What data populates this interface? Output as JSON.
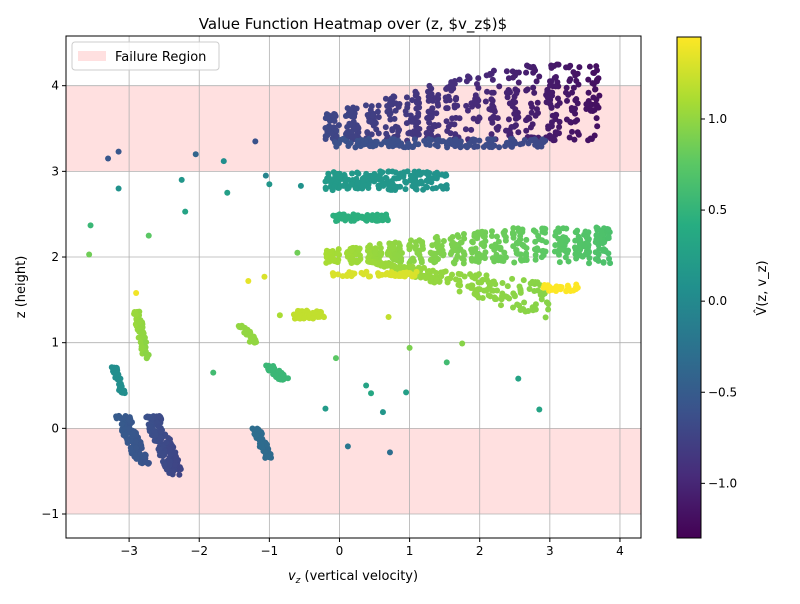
{
  "chart_data": {
    "type": "scatter",
    "title": "Value Function Heatmap over (z, $v_z$)$",
    "xlabel_main": "v",
    "xlabel_sub": "z",
    "xlabel_rest": " (vertical velocity)",
    "ylabel": "z (height)",
    "colorbar_label": "V̂(z, v_z)",
    "xlim": [
      -3.9,
      4.3
    ],
    "ylim": [
      -1.28,
      4.58
    ],
    "x_ticks": [
      -3,
      -2,
      -1,
      0,
      1,
      2,
      3,
      4
    ],
    "y_ticks": [
      -1,
      0,
      1,
      2,
      3,
      4
    ],
    "grid": true,
    "legend": {
      "placement": "top-left",
      "label": "Failure Region",
      "color": "#ffe0e0"
    },
    "failure_regions": [
      {
        "y0": 3.0,
        "y1": 4.0
      },
      {
        "y0": -1.0,
        "y1": 0.0
      }
    ],
    "colormap": "viridis",
    "colorbar": {
      "min": -1.3,
      "max": 1.45,
      "ticks": [
        -1.0,
        -0.5,
        0.0,
        0.5,
        1.0
      ]
    },
    "clusters": [
      {
        "x0": -0.2,
        "x1": 3.8,
        "y0": 3.2,
        "y1": 4.25,
        "v0": -0.7,
        "v1": -1.2,
        "n": 520,
        "kind": "streaks"
      },
      {
        "x0": -0.1,
        "x1": 3.0,
        "y0": 3.28,
        "y1": 3.38,
        "v0": -0.6,
        "v1": -0.7,
        "n": 140,
        "kind": "band"
      },
      {
        "x0": -0.2,
        "x1": 1.55,
        "y0": 2.78,
        "y1": 3.0,
        "v0": 0.2,
        "v1": 0.1,
        "n": 180,
        "kind": "band"
      },
      {
        "x0": -0.1,
        "x1": 0.7,
        "y0": 2.42,
        "y1": 2.5,
        "v0": 0.45,
        "v1": 0.45,
        "n": 60,
        "kind": "band"
      },
      {
        "x0": -0.2,
        "x1": 3.95,
        "y0": 1.85,
        "y1": 2.35,
        "v0": 1.1,
        "v1": 0.65,
        "n": 460,
        "kind": "streaks"
      },
      {
        "x0": 0.4,
        "x1": 3.0,
        "y0": 1.25,
        "y1": 1.95,
        "v0": 1.05,
        "v1": 0.95,
        "n": 220,
        "kind": "fan"
      },
      {
        "x0": -0.1,
        "x1": 1.1,
        "y0": 1.77,
        "y1": 1.83,
        "v0": 1.3,
        "v1": 1.3,
        "n": 50,
        "kind": "band"
      },
      {
        "x0": 2.9,
        "x1": 3.4,
        "y0": 1.6,
        "y1": 1.68,
        "v0": 1.45,
        "v1": 1.45,
        "n": 30,
        "kind": "band"
      },
      {
        "x0": -0.65,
        "x1": -0.2,
        "y0": 1.28,
        "y1": 1.38,
        "v0": 1.2,
        "v1": 1.2,
        "n": 40,
        "kind": "band"
      },
      {
        "x0": -2.95,
        "x1": -2.7,
        "y0": 0.8,
        "y1": 1.38,
        "v0": 1.05,
        "v1": 0.95,
        "n": 60,
        "kind": "diag"
      },
      {
        "x0": -1.45,
        "x1": -1.15,
        "y0": 1.0,
        "y1": 1.2,
        "v0": 1.0,
        "v1": 1.0,
        "n": 30,
        "kind": "diag"
      },
      {
        "x0": -1.1,
        "x1": -0.7,
        "y0": 0.56,
        "y1": 0.74,
        "v0": 0.55,
        "v1": 0.55,
        "n": 40,
        "kind": "diag"
      },
      {
        "x0": -3.25,
        "x1": -3.05,
        "y0": 0.4,
        "y1": 0.72,
        "v0": 0.05,
        "v1": 0.05,
        "n": 30,
        "kind": "diag"
      },
      {
        "x0": -3.2,
        "x1": -2.7,
        "y0": -0.42,
        "y1": 0.15,
        "v0": -0.5,
        "v1": -0.6,
        "n": 120,
        "kind": "diag"
      },
      {
        "x0": -2.8,
        "x1": -2.2,
        "y0": -0.55,
        "y1": 0.15,
        "v0": -0.6,
        "v1": -0.75,
        "n": 140,
        "kind": "diag"
      },
      {
        "x0": -1.25,
        "x1": -0.95,
        "y0": -0.35,
        "y1": 0.0,
        "v0": -0.3,
        "v1": -0.35,
        "n": 50,
        "kind": "diag"
      }
    ],
    "points": [
      {
        "x": -3.3,
        "y": 3.15,
        "v": -0.55
      },
      {
        "x": -3.15,
        "y": 3.23,
        "v": -0.55
      },
      {
        "x": -3.15,
        "y": 2.8,
        "v": 0.1
      },
      {
        "x": -2.05,
        "y": 3.2,
        "v": -0.4
      },
      {
        "x": -1.65,
        "y": 3.12,
        "v": 0.05
      },
      {
        "x": -1.2,
        "y": 3.35,
        "v": -0.6
      },
      {
        "x": -2.25,
        "y": 2.9,
        "v": 0.15
      },
      {
        "x": -2.2,
        "y": 2.53,
        "v": 0.3
      },
      {
        "x": -1.6,
        "y": 2.75,
        "v": 0.25
      },
      {
        "x": -1.05,
        "y": 2.95,
        "v": -0.05
      },
      {
        "x": -1.0,
        "y": 2.85,
        "v": 0.15
      },
      {
        "x": -0.55,
        "y": 2.83,
        "v": 0.1
      },
      {
        "x": -3.55,
        "y": 2.37,
        "v": 0.55
      },
      {
        "x": -3.57,
        "y": 2.03,
        "v": 0.85
      },
      {
        "x": -2.72,
        "y": 2.25,
        "v": 0.75
      },
      {
        "x": -0.6,
        "y": 2.05,
        "v": 0.85
      },
      {
        "x": -2.9,
        "y": 1.58,
        "v": 1.4
      },
      {
        "x": -1.3,
        "y": 1.72,
        "v": 1.35
      },
      {
        "x": -1.07,
        "y": 1.77,
        "v": 1.3
      },
      {
        "x": -0.85,
        "y": 1.32,
        "v": 1.1
      },
      {
        "x": 0.7,
        "y": 1.3,
        "v": 1.2
      },
      {
        "x": 1.0,
        "y": 0.94,
        "v": 0.9
      },
      {
        "x": 1.75,
        "y": 0.99,
        "v": 0.95
      },
      {
        "x": 1.53,
        "y": 0.77,
        "v": 0.6
      },
      {
        "x": -0.05,
        "y": 0.82,
        "v": 0.75
      },
      {
        "x": -1.8,
        "y": 0.65,
        "v": 0.6
      },
      {
        "x": 0.38,
        "y": 0.5,
        "v": 0.3
      },
      {
        "x": 0.45,
        "y": 0.41,
        "v": 0.35
      },
      {
        "x": 0.95,
        "y": 0.42,
        "v": 0.25
      },
      {
        "x": 2.55,
        "y": 0.58,
        "v": 0.3
      },
      {
        "x": -0.2,
        "y": 0.23,
        "v": 0.2
      },
      {
        "x": 0.62,
        "y": 0.19,
        "v": 0.15
      },
      {
        "x": 2.85,
        "y": 0.22,
        "v": 0.3
      },
      {
        "x": 0.12,
        "y": -0.21,
        "v": -0.2
      },
      {
        "x": 0.72,
        "y": -0.28,
        "v": -0.3
      }
    ]
  }
}
